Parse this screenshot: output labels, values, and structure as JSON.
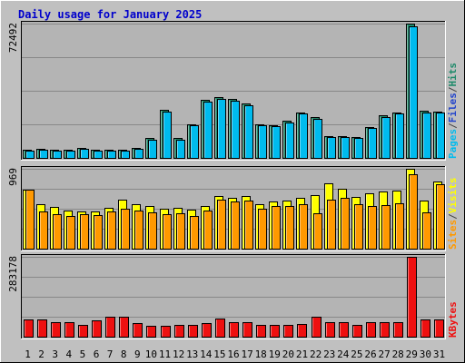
{
  "title": "Daily usage for January 2025",
  "colors": {
    "background": "#c0c0c0",
    "plot_bg": "#b4b4b4",
    "grid": "#888888",
    "hits": "#1e8a6a",
    "files": "#00bbee",
    "sites": "#ffff00",
    "visits": "#ff9900",
    "kbytes": "#ee1010",
    "weekend": "#118844",
    "title": "#0000cc"
  },
  "chart_data": [
    {
      "type": "bar",
      "panel": "top",
      "ymax_label": "72492",
      "ylim": [
        0,
        72492
      ],
      "side_labels": [
        "Pages",
        "/",
        "Files",
        "/",
        "Hits"
      ],
      "categories": [
        "1",
        "2",
        "3",
        "4",
        "5",
        "6",
        "7",
        "8",
        "9",
        "10",
        "11",
        "12",
        "13",
        "14",
        "15",
        "16",
        "17",
        "18",
        "19",
        "20",
        "21",
        "22",
        "23",
        "24",
        "25",
        "26",
        "27",
        "28",
        "29",
        "30",
        "31"
      ],
      "weekend_days": [
        "4",
        "5",
        "11",
        "12",
        "18",
        "19",
        "25",
        "26"
      ],
      "series": [
        {
          "name": "Hits",
          "values": [
            4500,
            4800,
            4200,
            4200,
            5300,
            4400,
            4500,
            4300,
            5200,
            10800,
            26000,
            10700,
            18300,
            31500,
            32700,
            31700,
            29400,
            18200,
            17700,
            19900,
            24600,
            22100,
            12000,
            11800,
            11400,
            16700,
            22800,
            24600,
            72492,
            25300,
            25200
          ]
        },
        {
          "name": "Files",
          "values": [
            4000,
            4400,
            3900,
            3900,
            4800,
            4000,
            4100,
            3900,
            4800,
            10000,
            25000,
            10000,
            17500,
            30500,
            31700,
            30800,
            28400,
            17500,
            17000,
            19100,
            23800,
            21300,
            11500,
            11300,
            10900,
            16100,
            22000,
            23800,
            71000,
            24500,
            24400
          ]
        }
      ]
    },
    {
      "type": "bar",
      "panel": "middle",
      "ymax_label": "969",
      "ylim": [
        0,
        969
      ],
      "side_labels": [
        "Sites",
        "/",
        "Visits"
      ],
      "categories": [
        "1",
        "2",
        "3",
        "4",
        "5",
        "6",
        "7",
        "8",
        "9",
        "10",
        "11",
        "12",
        "13",
        "14",
        "15",
        "16",
        "17",
        "18",
        "19",
        "20",
        "21",
        "22",
        "23",
        "24",
        "25",
        "26",
        "27",
        "28",
        "29",
        "30",
        "31"
      ],
      "weekend_days": [
        "4",
        "5",
        "11",
        "12",
        "18",
        "19",
        "25",
        "26"
      ],
      "series": [
        {
          "name": "Sites",
          "values": [
            720,
            540,
            510,
            460,
            450,
            450,
            500,
            600,
            540,
            520,
            490,
            500,
            470,
            520,
            640,
            620,
            640,
            540,
            570,
            580,
            620,
            650,
            790,
            730,
            630,
            670,
            690,
            700,
            969,
            580,
            810
          ]
        },
        {
          "name": "Visits",
          "values": [
            720,
            450,
            420,
            400,
            420,
            410,
            450,
            490,
            460,
            440,
            420,
            430,
            400,
            460,
            590,
            570,
            580,
            480,
            520,
            520,
            540,
            430,
            600,
            620,
            540,
            520,
            530,
            550,
            900,
            440,
            780
          ]
        }
      ]
    },
    {
      "type": "bar",
      "panel": "bottom",
      "ymax_label": "283178",
      "ylim": [
        0,
        283178
      ],
      "side_labels": [
        "KBytes"
      ],
      "categories": [
        "1",
        "2",
        "3",
        "4",
        "5",
        "6",
        "7",
        "8",
        "9",
        "10",
        "11",
        "12",
        "13",
        "14",
        "15",
        "16",
        "17",
        "18",
        "19",
        "20",
        "21",
        "22",
        "23",
        "24",
        "25",
        "26",
        "27",
        "28",
        "29",
        "30",
        "31"
      ],
      "weekend_days": [
        "4",
        "5",
        "11",
        "12",
        "18",
        "19",
        "25",
        "26"
      ],
      "series": [
        {
          "name": "KBytes",
          "values": [
            60000,
            60000,
            50000,
            53000,
            43000,
            57000,
            71000,
            71000,
            48000,
            40000,
            40000,
            43000,
            43000,
            47000,
            63000,
            50000,
            50000,
            41000,
            43000,
            43000,
            44000,
            70000,
            53000,
            50000,
            42000,
            50000,
            53000,
            50000,
            283178,
            60000,
            61000
          ]
        }
      ]
    }
  ]
}
